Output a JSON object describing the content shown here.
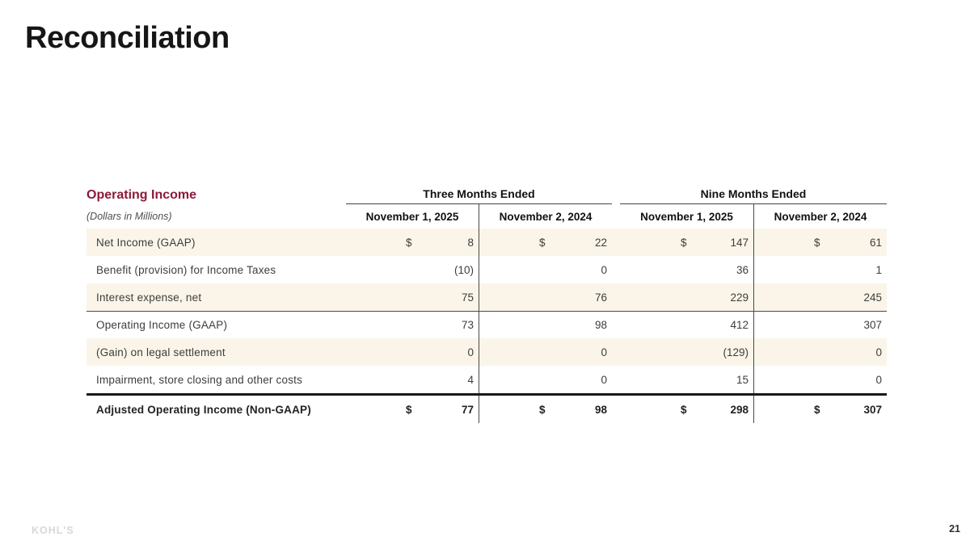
{
  "slide": {
    "title": "Reconciliation",
    "page_number": "21",
    "logo_text": "KOHL'S"
  },
  "table": {
    "section_title": "Operating Income",
    "units_note": "(Dollars in Millions)",
    "dollar_sign": "$",
    "col_groups": [
      {
        "label": "Three Months Ended"
      },
      {
        "label": "Nine Months Ended"
      }
    ],
    "columns": [
      {
        "label": "November 1, 2025"
      },
      {
        "label": "November 2, 2024"
      },
      {
        "label": "November 1, 2025"
      },
      {
        "label": "November 2, 2024"
      }
    ],
    "rows": [
      {
        "label": "Net Income (GAAP)",
        "values": [
          "8",
          "22",
          "147",
          "61"
        ]
      },
      {
        "label": "Benefit (provision) for Income Taxes",
        "values": [
          "(10)",
          "0",
          "36",
          "1"
        ]
      },
      {
        "label": "Interest expense, net",
        "values": [
          "75",
          "76",
          "229",
          "245"
        ]
      },
      {
        "label": "Operating Income (GAAP)",
        "values": [
          "73",
          "98",
          "412",
          "307"
        ]
      },
      {
        "label": "(Gain) on legal settlement",
        "values": [
          "0",
          "0",
          "(129)",
          "0"
        ]
      },
      {
        "label": "Impairment, store closing and other costs",
        "values": [
          "4",
          "0",
          "15",
          "0"
        ]
      },
      {
        "label": "Adjusted Operating Income (Non-GAAP)",
        "values": [
          "77",
          "98",
          "298",
          "307"
        ]
      }
    ],
    "colors": {
      "accent_maroon": "#8c1a3b",
      "row_stripe": "#faf5e8"
    }
  },
  "chart_data": {
    "type": "table",
    "title": "Operating Income",
    "units": "Dollars in Millions",
    "column_groups": [
      "Three Months Ended",
      "Nine Months Ended"
    ],
    "columns": [
      "Three Months Ended — November 1, 2025",
      "Three Months Ended — November 2, 2024",
      "Nine Months Ended — November 1, 2025",
      "Nine Months Ended — November 2, 2024"
    ],
    "rows": [
      {
        "label": "Net Income (GAAP)",
        "values": [
          8,
          22,
          147,
          61
        ]
      },
      {
        "label": "Benefit (provision) for Income Taxes",
        "values": [
          -10,
          0,
          36,
          1
        ]
      },
      {
        "label": "Interest expense, net",
        "values": [
          75,
          76,
          229,
          245
        ]
      },
      {
        "label": "Operating Income (GAAP)",
        "values": [
          73,
          98,
          412,
          307
        ]
      },
      {
        "label": "(Gain) on legal settlement",
        "values": [
          0,
          0,
          -129,
          0
        ]
      },
      {
        "label": "Impairment, store closing and other costs",
        "values": [
          4,
          0,
          15,
          0
        ]
      },
      {
        "label": "Adjusted Operating Income (Non-GAAP)",
        "values": [
          77,
          98,
          298,
          307
        ]
      }
    ]
  }
}
